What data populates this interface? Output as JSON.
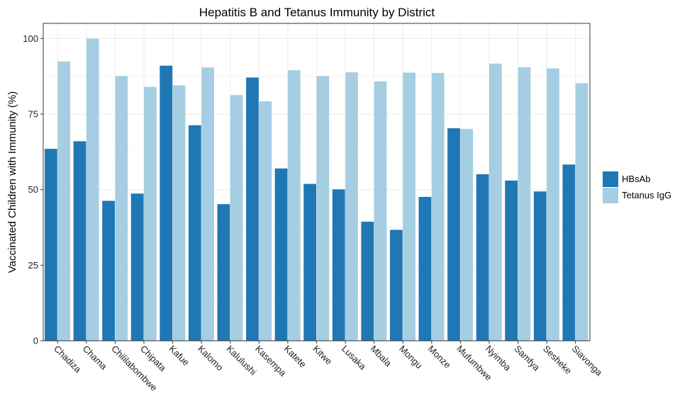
{
  "chart_data": {
    "type": "bar",
    "title": "Hepatitis B and Tetanus Immunity by District",
    "xlabel": "",
    "ylabel": "Vaccinated Children with Immunity (%)",
    "ylim": [
      0,
      105
    ],
    "yticks": [
      0,
      25,
      50,
      75,
      100
    ],
    "grid": true,
    "legend_position": "right",
    "categories": [
      "Chadiza",
      "Chama",
      "Chililabombwe",
      "Chipata",
      "Kafue",
      "Kalomo",
      "Kalulushi",
      "Kasempa",
      "Katete",
      "Kitwe",
      "Lusaka",
      "Mbala",
      "Mongu",
      "Monze",
      "Mufumbwe",
      "Nyimba",
      "Samfya",
      "Sesheke",
      "Siavonga"
    ],
    "series": [
      {
        "name": "HBsAb",
        "color": "#1f78b4",
        "values": [
          63.5,
          66,
          46.3,
          48.7,
          91,
          71.3,
          45.2,
          87.1,
          57,
          51.9,
          50.1,
          39.4,
          36.7,
          47.6,
          70.3,
          55.1,
          53,
          49.4,
          58.3
        ]
      },
      {
        "name": "Tetanus IgG",
        "color": "#a6cee3",
        "values": [
          92.4,
          100,
          87.6,
          84,
          84.5,
          90.4,
          81.3,
          79.2,
          89.5,
          87.6,
          88.8,
          85.8,
          88.7,
          88.6,
          70.1,
          91.7,
          90.5,
          90.1,
          85.2
        ]
      }
    ]
  }
}
